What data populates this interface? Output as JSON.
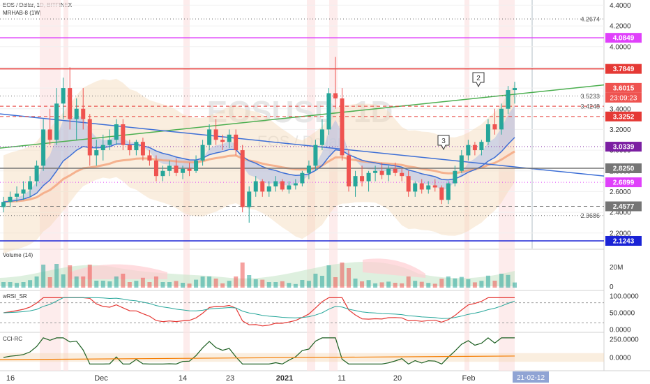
{
  "header": {
    "symbol_line": "EOS / Dollar, 1D, BITFINEX",
    "indicator_line": "MRHAB-8 (1W)",
    "watermark_symbol": "EOSUSD, 1D",
    "watermark_name": "EOS / Dollar"
  },
  "price_axis": {
    "ticks": [
      "4.4000",
      "4.2000",
      "4.0000",
      "3.8000",
      "3.6000",
      "3.4000",
      "3.2000",
      "3.0000",
      "2.8000",
      "2.6000",
      "2.4000",
      "2.2000"
    ]
  },
  "levels": [
    {
      "label": "4.2674",
      "value": 4.2674,
      "color": "#666666",
      "style": "dotted",
      "boxed": false
    },
    {
      "label": "4.0849",
      "value": 4.0849,
      "color": "#e040fb",
      "style": "solid",
      "boxed": true
    },
    {
      "label": "3.7849",
      "value": 3.7849,
      "color": "#e53935",
      "style": "solid",
      "boxed": true
    },
    {
      "label": "3.6015",
      "value": 3.6015,
      "color": "#ef5350",
      "style": "none",
      "boxed": true
    },
    {
      "label": "3.5233",
      "value": 3.5233,
      "color": "#666666",
      "style": "dotted",
      "boxed": false
    },
    {
      "label": "3.4248",
      "value": 3.4248,
      "color": "#e53935",
      "style": "dashed",
      "boxed": false
    },
    {
      "label": "3.3252",
      "value": 3.3252,
      "color": "#e53935",
      "style": "dashed",
      "boxed": true
    },
    {
      "label": "3.0339",
      "value": 3.0339,
      "color": "#7b1fa2",
      "style": "dotted",
      "boxed": true
    },
    {
      "label": "2.8250",
      "value": 2.825,
      "color": "#757575",
      "style": "solid",
      "boxed": true
    },
    {
      "label": "2.6899",
      "value": 2.6899,
      "color": "#e040fb",
      "style": "dotted",
      "boxed": true
    },
    {
      "label": "2.4577",
      "value": 2.4577,
      "color": "#757575",
      "style": "dashed",
      "boxed": true
    },
    {
      "label": "2.3686",
      "value": 2.3686,
      "color": "#666666",
      "style": "dotted",
      "boxed": false
    },
    {
      "label": "2.1243",
      "value": 2.1243,
      "color": "#1a23d6",
      "style": "solid",
      "boxed": true
    }
  ],
  "countdown": "23:09:23",
  "markers": [
    "2",
    "3"
  ],
  "time_axis": {
    "labels": [
      "16",
      "Dec",
      "14",
      "23",
      "2021",
      "11",
      "20",
      "Feb",
      "21-02-12"
    ]
  },
  "panes": [
    {
      "name": "Volume (14)",
      "ticks": [
        "20M",
        "0"
      ]
    },
    {
      "name": "wRSI_SR",
      "ticks": [
        "100.0000",
        "50.0000",
        "0.0000"
      ]
    },
    {
      "name": "CCI-RC",
      "ticks": [
        "250.0000",
        "0.0000"
      ]
    }
  ],
  "colors": {
    "up": "#26a69a",
    "down": "#ef5350",
    "green_line": "#4caf50",
    "blue_line": "#3d6fd6",
    "band": "#f3d9b8"
  },
  "chart_data": {
    "type": "candlestick",
    "title": "EOS / Dollar, 1D, BITFINEX",
    "x_start": "2020-11-16",
    "x_end": "2021-02-12",
    "ylim": [
      2.05,
      4.45
    ],
    "ohlc": [
      [
        2.45,
        2.55,
        2.4,
        2.5
      ],
      [
        2.5,
        2.6,
        2.45,
        2.55
      ],
      [
        2.55,
        2.65,
        2.5,
        2.58
      ],
      [
        2.58,
        2.7,
        2.52,
        2.62
      ],
      [
        2.62,
        2.75,
        2.55,
        2.7
      ],
      [
        2.7,
        2.9,
        2.65,
        2.85
      ],
      [
        2.85,
        3.3,
        2.8,
        3.2
      ],
      [
        3.2,
        3.4,
        3.05,
        3.1
      ],
      [
        3.1,
        3.6,
        3.05,
        3.45
      ],
      [
        3.45,
        3.7,
        3.3,
        3.6
      ],
      [
        3.6,
        3.8,
        3.2,
        3.3
      ],
      [
        3.3,
        3.5,
        3.1,
        3.4
      ],
      [
        3.4,
        3.6,
        3.2,
        3.3
      ],
      [
        3.3,
        3.35,
        2.85,
        2.95
      ],
      [
        2.95,
        3.1,
        2.85,
        3.0
      ],
      [
        3.0,
        3.15,
        2.9,
        3.05
      ],
      [
        3.05,
        3.2,
        3.0,
        3.1
      ],
      [
        3.1,
        3.3,
        3.05,
        3.25
      ],
      [
        3.25,
        3.3,
        3.0,
        3.05
      ],
      [
        3.05,
        3.1,
        2.95,
        3.0
      ],
      [
        3.0,
        3.1,
        2.95,
        3.08
      ],
      [
        3.08,
        3.12,
        2.9,
        2.95
      ],
      [
        2.95,
        3.0,
        2.85,
        2.9
      ],
      [
        2.9,
        2.95,
        2.7,
        2.75
      ],
      [
        2.75,
        2.85,
        2.7,
        2.8
      ],
      [
        2.8,
        2.9,
        2.75,
        2.85
      ],
      [
        2.85,
        2.92,
        2.75,
        2.78
      ],
      [
        2.78,
        2.85,
        2.72,
        2.82
      ],
      [
        2.82,
        2.88,
        2.75,
        2.8
      ],
      [
        2.8,
        2.95,
        2.78,
        2.9
      ],
      [
        2.9,
        3.1,
        2.85,
        3.05
      ],
      [
        3.05,
        3.25,
        3.0,
        3.2
      ],
      [
        3.2,
        3.3,
        3.05,
        3.1
      ],
      [
        3.1,
        3.15,
        3.0,
        3.08
      ],
      [
        3.08,
        3.2,
        3.02,
        3.15
      ],
      [
        3.15,
        3.2,
        2.95,
        3.0
      ],
      [
        3.0,
        3.05,
        2.4,
        2.45
      ],
      [
        2.45,
        2.65,
        2.3,
        2.6
      ],
      [
        2.6,
        2.75,
        2.55,
        2.7
      ],
      [
        2.7,
        2.72,
        2.55,
        2.6
      ],
      [
        2.6,
        2.7,
        2.55,
        2.65
      ],
      [
        2.65,
        2.75,
        2.6,
        2.7
      ],
      [
        2.7,
        2.72,
        2.6,
        2.62
      ],
      [
        2.62,
        2.7,
        2.58,
        2.66
      ],
      [
        2.66,
        2.72,
        2.62,
        2.68
      ],
      [
        2.68,
        2.8,
        2.65,
        2.78
      ],
      [
        2.78,
        2.9,
        2.72,
        2.85
      ],
      [
        2.85,
        3.1,
        2.8,
        3.05
      ],
      [
        3.05,
        3.3,
        3.0,
        3.2
      ],
      [
        3.2,
        3.6,
        3.15,
        3.55
      ],
      [
        3.55,
        3.9,
        3.4,
        3.5
      ],
      [
        3.5,
        3.6,
        2.9,
        2.95
      ],
      [
        2.95,
        3.0,
        2.6,
        2.65
      ],
      [
        2.65,
        2.8,
        2.55,
        2.75
      ],
      [
        2.75,
        2.85,
        2.65,
        2.7
      ],
      [
        2.7,
        2.8,
        2.6,
        2.78
      ],
      [
        2.78,
        2.85,
        2.7,
        2.8
      ],
      [
        2.8,
        2.88,
        2.72,
        2.76
      ],
      [
        2.76,
        2.85,
        2.7,
        2.82
      ],
      [
        2.82,
        2.88,
        2.75,
        2.78
      ],
      [
        2.78,
        2.82,
        2.7,
        2.75
      ],
      [
        2.75,
        2.8,
        2.55,
        2.6
      ],
      [
        2.6,
        2.7,
        2.55,
        2.68
      ],
      [
        2.68,
        2.72,
        2.58,
        2.62
      ],
      [
        2.62,
        2.7,
        2.58,
        2.66
      ],
      [
        2.66,
        2.72,
        2.6,
        2.64
      ],
      [
        2.64,
        2.66,
        2.48,
        2.52
      ],
      [
        2.52,
        2.7,
        2.48,
        2.68
      ],
      [
        2.68,
        2.85,
        2.65,
        2.8
      ],
      [
        2.8,
        3.0,
        2.78,
        2.95
      ],
      [
        2.95,
        3.1,
        2.9,
        3.05
      ],
      [
        3.05,
        3.08,
        2.95,
        3.0
      ],
      [
        3.0,
        3.1,
        2.95,
        3.08
      ],
      [
        3.08,
        3.3,
        3.05,
        3.25
      ],
      [
        3.25,
        3.4,
        3.15,
        3.2
      ],
      [
        3.2,
        3.45,
        3.15,
        3.4
      ],
      [
        3.4,
        3.62,
        3.35,
        3.58
      ],
      [
        3.58,
        3.66,
        3.45,
        3.6
      ]
    ]
  }
}
